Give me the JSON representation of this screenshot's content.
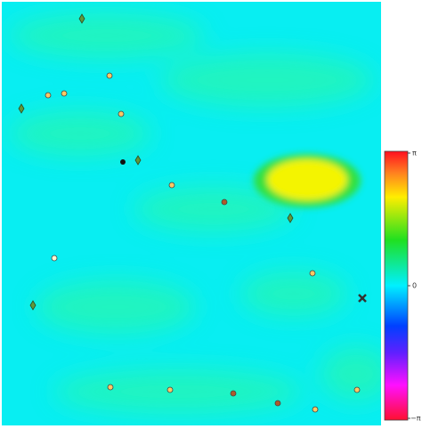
{
  "colorbar": {
    "ticks": [
      "π",
      "0",
      "−π"
    ]
  }
}
